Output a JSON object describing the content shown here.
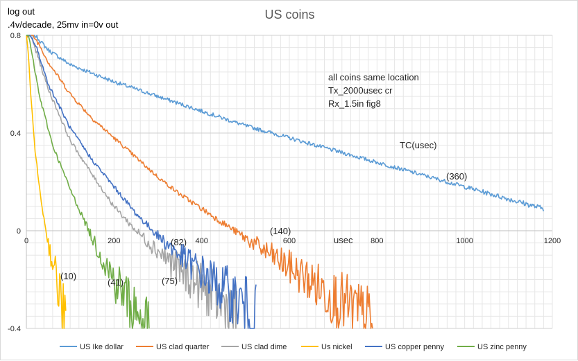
{
  "chart_data": {
    "type": "line",
    "title": "US coins",
    "ylabel_line1": "log out",
    "ylabel_line2": ".4v/decade, 25mv in=0v out",
    "xlabel": "usec",
    "xlim": [
      0,
      1200
    ],
    "ylim": [
      -0.4,
      0.8
    ],
    "xticks": [
      0,
      200,
      400,
      600,
      800,
      1000,
      1200
    ],
    "yticks": [
      -0.4,
      0,
      0.4,
      0.8
    ],
    "ytick_labels": [
      "-0.4",
      "0",
      "0.4",
      "0.8"
    ],
    "notes": [
      "all coins same location",
      "Tx_2000usec cr",
      "Rx_1.5in fig8"
    ],
    "tc_label": "TC(usec)",
    "series": [
      {
        "name": "US Ike dollar",
        "color": "#5b9bd5",
        "tc_label": "(360)",
        "x": [
          0,
          10,
          20,
          30,
          50,
          100,
          200,
          300,
          400,
          500,
          600,
          700,
          800,
          900,
          1000,
          1100,
          1180
        ],
        "y": [
          0.8,
          0.8,
          0.8,
          0.78,
          0.74,
          0.68,
          0.61,
          0.55,
          0.49,
          0.43,
          0.38,
          0.33,
          0.28,
          0.23,
          0.18,
          0.13,
          0.09
        ]
      },
      {
        "name": "US clad quarter",
        "color": "#ed7d31",
        "tc_label": "(140)",
        "x": [
          0,
          15,
          30,
          50,
          100,
          150,
          200,
          250,
          300,
          350,
          400,
          450,
          500,
          550,
          600,
          650,
          700,
          750,
          790
        ],
        "y": [
          0.8,
          0.8,
          0.76,
          0.69,
          0.56,
          0.46,
          0.38,
          0.3,
          0.22,
          0.15,
          0.09,
          0.03,
          -0.03,
          -0.09,
          -0.15,
          -0.21,
          -0.27,
          -0.33,
          -0.39
        ]
      },
      {
        "name": "US clad  dime",
        "color": "#a5a5a5",
        "tc_label": "(75)",
        "x": [
          0,
          10,
          25,
          50,
          100,
          150,
          200,
          250,
          300,
          350,
          400,
          450,
          480
        ],
        "y": [
          0.8,
          0.8,
          0.72,
          0.58,
          0.37,
          0.23,
          0.1,
          0.0,
          -0.08,
          -0.16,
          -0.23,
          -0.3,
          -0.36
        ]
      },
      {
        "name": "Us nickel",
        "color": "#ffc000",
        "tc_label": "(10)",
        "x": [
          0,
          5,
          10,
          20,
          30,
          40,
          50,
          60,
          70,
          80,
          90
        ],
        "y": [
          0.8,
          0.72,
          0.55,
          0.33,
          0.17,
          0.05,
          -0.05,
          -0.13,
          -0.21,
          -0.3,
          -0.4
        ]
      },
      {
        "name": "US copper penny",
        "color": "#4472c4",
        "tc_label": "(82)",
        "x": [
          0,
          10,
          25,
          50,
          100,
          150,
          200,
          250,
          300,
          350,
          400,
          450,
          500,
          525
        ],
        "y": [
          0.8,
          0.8,
          0.74,
          0.6,
          0.42,
          0.29,
          0.18,
          0.07,
          -0.02,
          -0.1,
          -0.17,
          -0.24,
          -0.31,
          -0.38
        ]
      },
      {
        "name": "US zinc penny",
        "color": "#70ad47",
        "tc_label": "(41)",
        "x": [
          0,
          5,
          15,
          30,
          60,
          100,
          150,
          200,
          250,
          280
        ],
        "y": [
          0.8,
          0.8,
          0.7,
          0.55,
          0.35,
          0.17,
          -0.03,
          -0.2,
          -0.33,
          -0.4
        ]
      }
    ]
  }
}
